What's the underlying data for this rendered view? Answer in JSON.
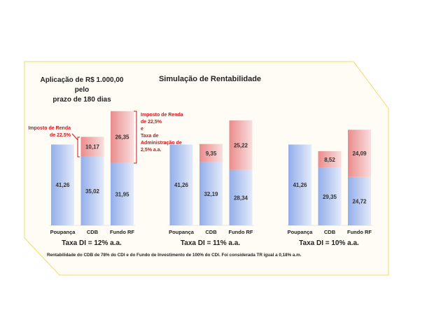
{
  "chart_data": {
    "type": "bar",
    "stacked": true,
    "title": "Simulação de Rentabilidade",
    "subtitle": [
      "Aplicação de R$ 1.000,00",
      "pelo",
      "prazo de 180 dias"
    ],
    "groups": [
      {
        "label": "Taxa DI = 12% a.a.",
        "categories": [
          "Poupança",
          "CDB",
          "Fundo RF"
        ],
        "net": [
          41.26,
          35.02,
          31.95
        ],
        "deductions": [
          null,
          10.17,
          26.35
        ]
      },
      {
        "label": "Taxa DI = 11% a.a.",
        "categories": [
          "Poupança",
          "CDB",
          "Fundo RF"
        ],
        "net": [
          41.26,
          32.19,
          28.34
        ],
        "deductions": [
          null,
          9.35,
          25.22
        ]
      },
      {
        "label": "Taxa DI = 10% a.a.",
        "categories": [
          "Poupança",
          "CDB",
          "Fundo RF"
        ],
        "net": [
          41.26,
          29.35,
          24.72
        ],
        "deductions": [
          null,
          8.52,
          24.09
        ]
      }
    ],
    "annotations": {
      "cdb": [
        "Imposto de Renda",
        "de 22,5%"
      ],
      "fundo": [
        "Imposto de Renda",
        "de 22,5%",
        "e",
        "Taxa de",
        "Administração de",
        "2,5% a.a."
      ]
    },
    "footnote": "Rentabilidade do CDB de 78% do CDI e do Fundo de Investimento de 100% do CDI. Foi considerada TR igual a 0,18% a.m.",
    "colors": {
      "net": "#9db7ec",
      "deduction": "#ec9a9a",
      "annotation": "#d0141e",
      "frame": "#f5d86a",
      "background": "#fffcf5"
    },
    "grid": false,
    "legend": "none"
  }
}
